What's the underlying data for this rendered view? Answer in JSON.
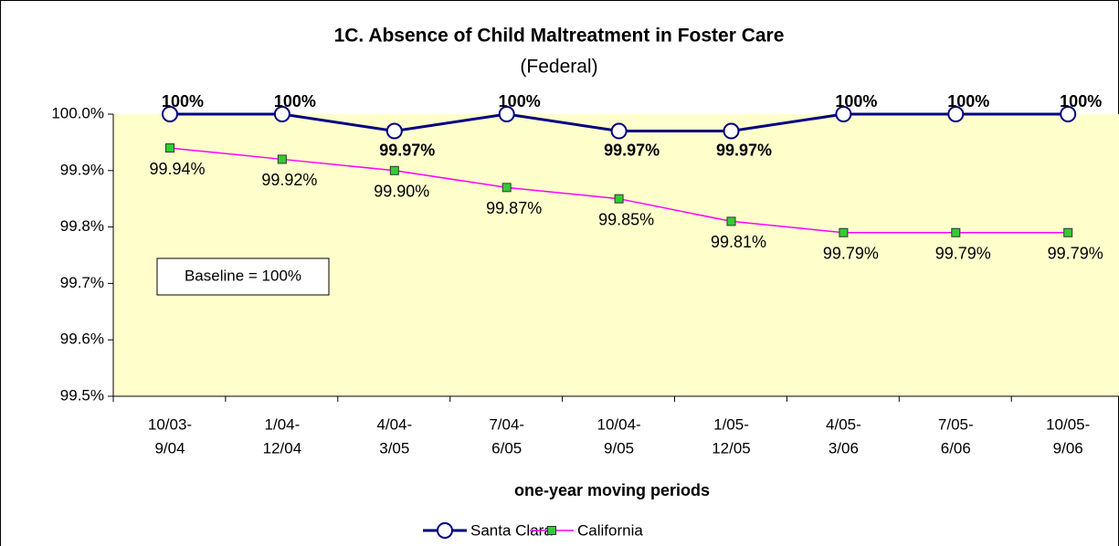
{
  "chart_data": {
    "type": "line",
    "title": "1C. Absence of Child Maltreatment in Foster Care",
    "subtitle": "(Federal)",
    "x_label": "one-year moving periods",
    "annotation": "Baseline = 100%",
    "categories": [
      [
        "10/03-",
        "9/04"
      ],
      [
        "1/04-",
        "12/04"
      ],
      [
        "4/04-",
        "3/05"
      ],
      [
        "7/04-",
        "6/05"
      ],
      [
        "10/04-",
        "9/05"
      ],
      [
        "1/05-",
        "12/05"
      ],
      [
        "4/05-",
        "3/06"
      ],
      [
        "7/05-",
        "6/06"
      ],
      [
        "10/05-",
        "9/06"
      ]
    ],
    "series": [
      {
        "name": "Santa Clara",
        "color": "#000080",
        "marker": "circle",
        "values": [
          100,
          100,
          99.97,
          100,
          99.97,
          99.97,
          100,
          100,
          100
        ],
        "value_labels": [
          "100%",
          "100%",
          "99.97%",
          "100%",
          "99.97%",
          "99.97%",
          "100%",
          "100%",
          "100%"
        ]
      },
      {
        "name": "California",
        "color": "#ff00ff",
        "marker": "square",
        "values": [
          99.94,
          99.92,
          99.9,
          99.87,
          99.85,
          99.81,
          99.79,
          99.79,
          99.79
        ],
        "value_labels": [
          "99.94%",
          "99.92%",
          "99.90%",
          "99.87%",
          "99.85%",
          "99.81%",
          "99.79%",
          "99.79%",
          "99.79%"
        ]
      }
    ],
    "ylim": [
      99.5,
      100
    ],
    "yticks": [
      {
        "value": 99.5,
        "label": "99.5%"
      },
      {
        "value": 99.6,
        "label": "99.6%"
      },
      {
        "value": 99.7,
        "label": "99.7%"
      },
      {
        "value": 99.8,
        "label": "99.8%"
      },
      {
        "value": 99.9,
        "label": "99.9%"
      },
      {
        "value": 100,
        "label": "100.0%"
      }
    ],
    "legend": "bottom"
  }
}
